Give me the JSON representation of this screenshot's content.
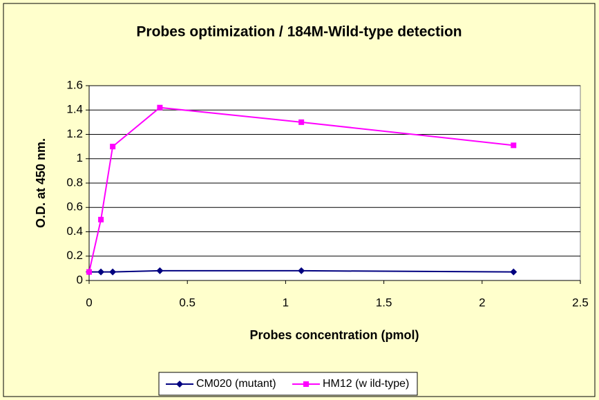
{
  "chart_data": {
    "type": "line",
    "title": "Probes optimization / 184M-Wild-type detection",
    "x_label": "Probes concentration (pmol)",
    "y_label": "O.D. at 450 nm.",
    "x": [
      0,
      0.06,
      0.12,
      0.36,
      1.08,
      2.16
    ],
    "series": [
      {
        "name": "CM020 (mutant)",
        "color": "#000080",
        "marker": "diamond",
        "values": [
          0.07,
          0.07,
          0.07,
          0.08,
          0.08,
          0.07
        ]
      },
      {
        "name": "HM12 (w ild-type)",
        "color": "#ff00ff",
        "marker": "square",
        "values": [
          0.07,
          0.5,
          1.1,
          1.42,
          1.3,
          1.11
        ]
      }
    ],
    "xlim": [
      0,
      2.5
    ],
    "xticks": [
      0,
      0.5,
      1,
      1.5,
      2,
      2.5
    ],
    "ylim": [
      0,
      1.6
    ],
    "yticks": [
      0,
      0.2,
      0.4,
      0.6,
      0.8,
      1,
      1.2,
      1.4,
      1.6
    ],
    "grid": true,
    "legend": "bottom"
  }
}
